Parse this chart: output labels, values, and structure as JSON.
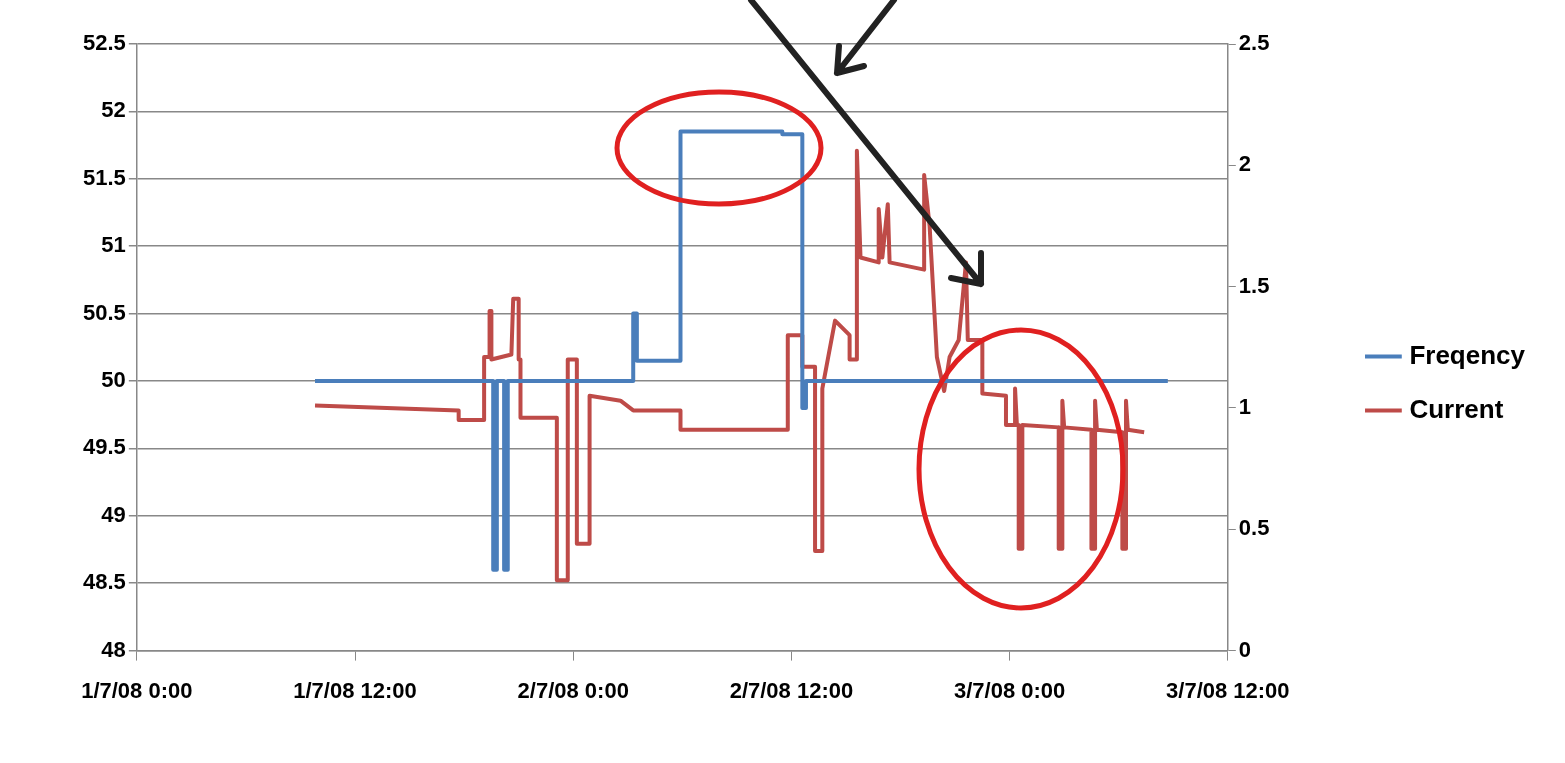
{
  "chart_data": {
    "type": "line",
    "xlim": [
      "--07-01T00:00",
      "--07-03T12:00"
    ],
    "xticks": [
      {
        "value": "--07-01T00:00",
        "label": "1/7/08 0:00"
      },
      {
        "value": "--07-01T12:00",
        "label": "1/7/08 12:00"
      },
      {
        "value": "--07-02T00:00",
        "label": "2/7/08 0:00"
      },
      {
        "value": "--07-02T12:00",
        "label": "2/7/08 12:00"
      },
      {
        "value": "--07-03T00:00",
        "label": "3/7/08 0:00"
      },
      {
        "value": "--07-03T12:00",
        "label": "3/7/08 12:00"
      }
    ],
    "ylim": [
      48,
      52.5
    ],
    "yticks": [
      48,
      48.5,
      49,
      49.5,
      50,
      50.5,
      51,
      51.5,
      52,
      52.5
    ],
    "y2lim": [
      0,
      2.5
    ],
    "y2ticks": [
      0,
      0.5,
      1,
      1.5,
      2,
      2.5
    ],
    "grid": "y",
    "legend": "right",
    "marker": "none",
    "line_style": "solid",
    "series": [
      {
        "name": "Freqency",
        "color": "#4a7ebb",
        "x": [
          "--07-01T09:48",
          "--07-01T19:36",
          "--07-01T19:36",
          "--07-01T19:48",
          "--07-01T19:48",
          "--07-01T20:12",
          "--07-01T20:12",
          "--07-01T20:24",
          "--07-01T20:24",
          "--07-02T03:18",
          "--07-02T03:18",
          "--07-02T03:30",
          "--07-02T03:30",
          "--07-02T05:54",
          "--07-02T05:54",
          "--07-02T11:30",
          "--07-02T11:30",
          "--07-02T12:36",
          "--07-02T12:36",
          "--07-02T12:48",
          "--07-02T12:48",
          "--07-03T08:42"
        ],
        "values": [
          50,
          50,
          48.6,
          48.6,
          50,
          50,
          48.6,
          48.6,
          50,
          50,
          50.5,
          50.5,
          50.15,
          50.15,
          51.85,
          51.85,
          51.83,
          51.83,
          49.8,
          49.8,
          50,
          50
        ]
      },
      {
        "name": "Current",
        "color": "#be4b48",
        "axis": "y2",
        "x": [
          "--07-01T09:48",
          "--07-01T17:42",
          "--07-01T17:42",
          "--07-01T19:06",
          "--07-01T19:06",
          "--07-01T19:24",
          "--07-01T19:24",
          "--07-01T19:30",
          "--07-01T19:30",
          "--07-01T20:36",
          "--07-01T20:42",
          "--07-01T21:00",
          "--07-01T21:00",
          "--07-01T21:06",
          "--07-01T21:06",
          "--07-01T23:06",
          "--07-01T23:06",
          "--07-01T23:42",
          "--07-01T23:42",
          "--07-02T00:12",
          "--07-02T00:12",
          "--07-02T00:54",
          "--07-02T00:54",
          "--07-02T02:36",
          "--07-02T03:18",
          "--07-02T05:54",
          "--07-02T05:54",
          "--07-02T11:48",
          "--07-02T11:48",
          "--07-02T12:36",
          "--07-02T12:36",
          "--07-02T13:18",
          "--07-02T13:18",
          "--07-02T13:42",
          "--07-02T13:42",
          "--07-02T14:00",
          "--07-02T14:24",
          "--07-02T15:12",
          "--07-02T15:12",
          "--07-02T15:36",
          "--07-02T15:36",
          "--07-02T15:48",
          "--07-02T16:48",
          "--07-02T16:48",
          "--07-02T17:00",
          "--07-02T17:18",
          "--07-02T17:24",
          "--07-02T19:18",
          "--07-02T19:18",
          "--07-02T19:36",
          "--07-02T20:00",
          "--07-02T20:24",
          "--07-02T20:42",
          "--07-02T21:12",
          "--07-02T21:36",
          "--07-02T21:42",
          "--07-02T22:30",
          "--07-02T22:30",
          "--07-02T23:48",
          "--07-02T23:48",
          "--07-03T00:18",
          "--07-03T00:18",
          "--07-03T00:24",
          "--07-03T00:30",
          "--07-03T00:30",
          "--07-03T00:42",
          "--07-03T00:42",
          "--07-03T02:42",
          "--07-03T02:42",
          "--07-03T02:54",
          "--07-03T02:54",
          "--07-03T03:00",
          "--07-03T04:30",
          "--07-03T04:30",
          "--07-03T04:42",
          "--07-03T04:42",
          "--07-03T04:48",
          "--07-03T06:12",
          "--07-03T06:12",
          "--07-03T06:24",
          "--07-03T06:24",
          "--07-03T06:30",
          "--07-03T07:24"
        ],
        "values": [
          1.01,
          0.99,
          0.95,
          0.95,
          1.21,
          1.21,
          1.4,
          1.4,
          1.2,
          1.22,
          1.45,
          1.45,
          1.2,
          1.2,
          0.96,
          0.96,
          0.29,
          0.29,
          1.2,
          1.2,
          0.44,
          0.44,
          1.05,
          1.03,
          0.99,
          0.99,
          0.91,
          0.91,
          1.3,
          1.3,
          1.17,
          1.17,
          0.41,
          0.41,
          1.08,
          1.2,
          1.36,
          1.3,
          1.2,
          1.2,
          2.06,
          1.62,
          1.6,
          1.82,
          1.62,
          1.84,
          1.6,
          1.57,
          1.96,
          1.75,
          1.21,
          1.07,
          1.21,
          1.28,
          1.6,
          1.28,
          1.28,
          1.06,
          1.05,
          0.93,
          0.93,
          1.08,
          0.93,
          0.93,
          0.42,
          0.42,
          0.93,
          0.92,
          0.42,
          0.42,
          1.03,
          0.92,
          0.91,
          0.42,
          0.42,
          1.03,
          0.91,
          0.9,
          0.42,
          0.42,
          1.03,
          0.91,
          0.9
        ]
      }
    ]
  }
}
